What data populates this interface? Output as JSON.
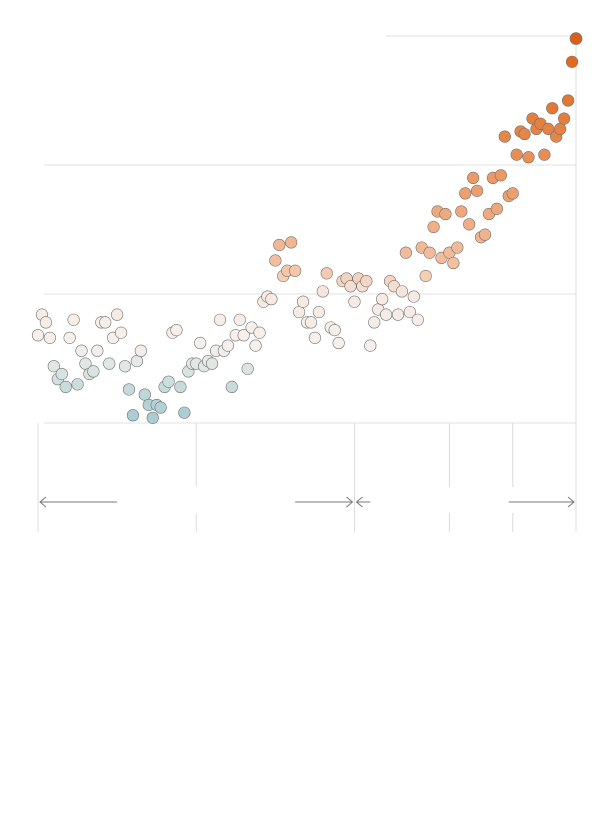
{
  "chart_data": {
    "type": "scatter",
    "title": "",
    "xlabel": "",
    "ylabel": "",
    "xlim": [
      1880,
      2016
    ],
    "ylim": [
      -0.5,
      1.0
    ],
    "grid": true,
    "legend": "none",
    "color_scale": {
      "cold": "#a9cdd1",
      "neutral": "#f6f0ec",
      "warm": "#f4c2a4",
      "hot": "#e06a1e"
    },
    "highlight_color": "#d9601a",
    "period_markers": [
      1880,
      1920,
      1960,
      1984,
      2000,
      2016
    ],
    "gaps": [
      [
        1900,
        1945
      ],
      [
        1964,
        1999
      ]
    ],
    "series": [
      {
        "name": "",
        "x": [
          1880,
          1881,
          1882,
          1883,
          1884,
          1885,
          1886,
          1887,
          1888,
          1889,
          1890,
          1891,
          1892,
          1893,
          1894,
          1895,
          1896,
          1897,
          1898,
          1899,
          1900,
          1901,
          1902,
          1903,
          1904,
          1905,
          1906,
          1907,
          1908,
          1909,
          1910,
          1911,
          1912,
          1913,
          1914,
          1915,
          1916,
          1917,
          1918,
          1919,
          1920,
          1921,
          1922,
          1923,
          1924,
          1925,
          1926,
          1927,
          1928,
          1929,
          1930,
          1931,
          1932,
          1933,
          1934,
          1935,
          1936,
          1937,
          1938,
          1939,
          1940,
          1941,
          1942,
          1943,
          1944,
          1945,
          1946,
          1947,
          1948,
          1949,
          1950,
          1951,
          1952,
          1953,
          1954,
          1955,
          1956,
          1957,
          1958,
          1959,
          1960,
          1961,
          1962,
          1963,
          1964,
          1965,
          1966,
          1967,
          1968,
          1969,
          1970,
          1971,
          1972,
          1973,
          1974,
          1975,
          1976,
          1977,
          1978,
          1979,
          1980,
          1981,
          1982,
          1983,
          1984,
          1985,
          1986,
          1987,
          1988,
          1989,
          1990,
          1991,
          1992,
          1993,
          1994,
          1995,
          1996,
          1997,
          1998,
          1999,
          2000,
          2001,
          2002,
          2003,
          2004,
          2005,
          2006,
          2007,
          2008,
          2009,
          2010,
          2011,
          2012,
          2013,
          2014,
          2015,
          2016
        ],
        "y": [
          -0.16,
          -0.08,
          -0.11,
          -0.17,
          -0.28,
          -0.33,
          -0.31,
          -0.36,
          -0.17,
          -0.1,
          -0.35,
          -0.22,
          -0.27,
          -0.31,
          -0.3,
          -0.22,
          -0.11,
          -0.11,
          -0.27,
          -0.17,
          -0.08,
          -0.15,
          -0.28,
          -0.37,
          -0.47,
          -0.26,
          -0.22,
          -0.39,
          -0.43,
          -0.48,
          -0.43,
          -0.44,
          -0.36,
          -0.34,
          -0.15,
          -0.14,
          -0.36,
          -0.46,
          -0.3,
          -0.27,
          -0.27,
          -0.19,
          -0.28,
          -0.26,
          -0.27,
          -0.22,
          -0.1,
          -0.22,
          -0.2,
          -0.36,
          -0.16,
          -0.1,
          -0.16,
          -0.29,
          -0.13,
          -0.2,
          -0.15,
          -0.03,
          -0.01,
          -0.02,
          0.13,
          0.19,
          0.07,
          0.09,
          0.2,
          0.09,
          -0.07,
          -0.03,
          -0.11,
          -0.11,
          -0.17,
          -0.07,
          0.01,
          0.08,
          -0.13,
          -0.14,
          -0.19,
          0.05,
          0.06,
          0.03,
          -0.03,
          0.06,
          0.03,
          0.05,
          -0.2,
          -0.11,
          -0.06,
          -0.02,
          -0.08,
          0.05,
          0.03,
          -0.08,
          0.01,
          0.16,
          -0.07,
          -0.01,
          -0.1,
          0.18,
          0.07,
          0.16,
          0.26,
          0.32,
          0.14,
          0.31,
          0.16,
          0.12,
          0.18,
          0.32,
          0.39,
          0.27,
          0.45,
          0.4,
          0.22,
          0.23,
          0.31,
          0.45,
          0.33,
          0.46,
          0.61,
          0.38,
          0.39,
          0.54,
          0.63,
          0.62,
          0.53,
          0.68,
          0.64,
          0.66,
          0.54,
          0.64,
          0.72,
          0.61,
          0.64,
          0.68,
          0.75,
          0.9,
          0.99
        ]
      }
    ]
  }
}
